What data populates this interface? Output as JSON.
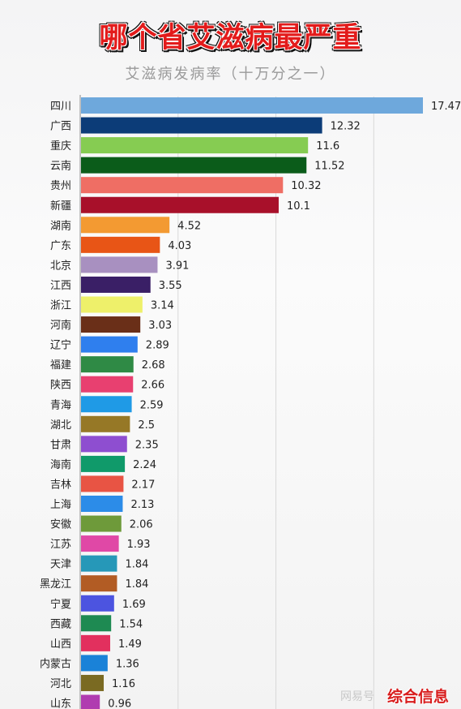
{
  "title": "哪个省艾滋病最严重",
  "subtitle": "艾滋病发病率（十万分之一）",
  "watermark": {
    "left_text": "网易号",
    "right_text": "综合信息"
  },
  "colors": {
    "title": "#e31b1b",
    "subtitle": "#9a9a9a",
    "bar_colors": [
      "#6ea8dc",
      "#0c3c78",
      "#86cc52",
      "#0b5c1a",
      "#ef6e64",
      "#a8102a",
      "#f39a32",
      "#e85516",
      "#a890c0",
      "#3a1f66",
      "#eef06a",
      "#6a2f18",
      "#2f7fee",
      "#2f8a45",
      "#e84070",
      "#1f9ae6",
      "#967826",
      "#8e4ed0",
      "#109a6a",
      "#e85444",
      "#2c8ce8",
      "#6e9a3a",
      "#e048a6",
      "#2698b8",
      "#b25c24",
      "#4c54e0",
      "#1e8a52",
      "#e2305e",
      "#1a82d8",
      "#7a6a22",
      "#b03cb0"
    ]
  },
  "chart_data": {
    "type": "bar",
    "orientation": "horizontal",
    "title": "哪个省艾滋病最严重",
    "subtitle": "艾滋病发病率（十万分之一）",
    "categories": [
      "四川",
      "广西",
      "重庆",
      "云南",
      "贵州",
      "新疆",
      "湖南",
      "广东",
      "北京",
      "江西",
      "浙江",
      "河南",
      "辽宁",
      "福建",
      "陕西",
      "青海",
      "湖北",
      "甘肃",
      "海南",
      "吉林",
      "上海",
      "安徽",
      "江苏",
      "天津",
      "黑龙江",
      "宁夏",
      "西藏",
      "山西",
      "内蒙古",
      "河北",
      "山东"
    ],
    "values": [
      17.47,
      12.32,
      11.6,
      11.52,
      10.32,
      10.1,
      4.52,
      4.03,
      3.91,
      3.55,
      3.14,
      3.03,
      2.89,
      2.68,
      2.66,
      2.59,
      2.5,
      2.35,
      2.24,
      2.17,
      2.13,
      2.06,
      1.93,
      1.84,
      1.84,
      1.69,
      1.54,
      1.49,
      1.36,
      1.16,
      0.96
    ],
    "value_labels": [
      "17.47",
      "12.32",
      "11.6",
      "11.52",
      "10.32",
      "10.1",
      "4.52",
      "4.03",
      "3.91",
      "3.55",
      "3.14",
      "3.03",
      "2.89",
      "2.68",
      "2.66",
      "2.59",
      "2.5",
      "2.35",
      "2.24",
      "2.17",
      "2.13",
      "2.06",
      "1.93",
      "1.84",
      "1.84",
      "1.69",
      "1.54",
      "1.49",
      "1.36",
      "1.16",
      "0.96"
    ],
    "xlim": [
      0,
      17.47
    ],
    "grid": true,
    "xlabel": "",
    "ylabel": ""
  }
}
